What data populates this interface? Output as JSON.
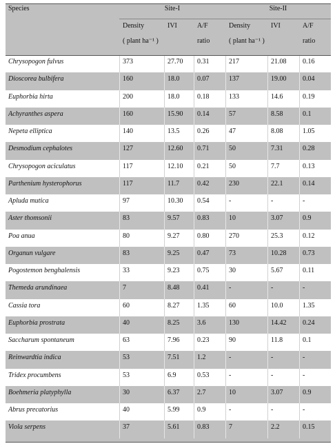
{
  "table": {
    "header": {
      "species": "Species",
      "site_1": "Site-I",
      "site_2": "Site-II",
      "columns": [
        [
          "Density",
          "( plant ha⁻¹ )"
        ],
        [
          "IVI"
        ],
        [
          "A/F",
          "ratio"
        ],
        [
          "Density",
          "( plant ha⁻¹ )"
        ],
        [
          "IVI"
        ],
        [
          "A/F",
          "ratio"
        ]
      ]
    },
    "rows": [
      [
        "Chrysopogon fulvus",
        "373",
        "27.70",
        "0.31",
        "217",
        "21.08",
        "0.16"
      ],
      [
        "Dioscorea bulbifera",
        "160",
        "18.0",
        "0.07",
        "137",
        "19.00",
        "0.04"
      ],
      [
        "Euphorbia hirta",
        "200",
        "18.0",
        "0.18",
        "133",
        "14.6",
        "0.19"
      ],
      [
        "Achyranthes aspera",
        "160",
        "15.90",
        "0.14",
        "57",
        "8.58",
        "0.1"
      ],
      [
        "Nepeta elliptica",
        "140",
        "13.5",
        "0.26",
        "47",
        "8.08",
        "1.05"
      ],
      [
        "Desmodium cephalotes",
        "127",
        "12.60",
        "0.71",
        "50",
        "7.31",
        "0.28"
      ],
      [
        "Chrysopogon aciculatus",
        "117",
        "12.10",
        "0.21",
        "50",
        "7.7",
        "0.13"
      ],
      [
        "Parthenium hysterophorus",
        "117",
        "11.7",
        "0.42",
        "230",
        "22.1",
        "0.14"
      ],
      [
        "Apluda mutica",
        "97",
        "10.30",
        "0.54",
        "-",
        "-",
        "-"
      ],
      [
        "Aster thomsonii",
        "83",
        "9.57",
        "0.83",
        "10",
        "3.07",
        "0.9"
      ],
      [
        "Poa anua",
        "80",
        "9.27",
        "0.80",
        "270",
        "25.3",
        "0.12"
      ],
      [
        "Organun vulgare",
        "83",
        "9.25",
        "0.47",
        "73",
        "10.28",
        "0.73"
      ],
      [
        "Pogostemon benghalensis",
        "33",
        "9.23",
        "0.75",
        "30",
        "5.67",
        "0.11"
      ],
      [
        "Themeda arundinaea",
        "7",
        "8.48",
        "0.41",
        "-",
        "-",
        "-"
      ],
      [
        "Cassia tora",
        "60",
        "8.27",
        "1.35",
        "60",
        "10.0",
        "1.35"
      ],
      [
        "Euphorbia prostrata",
        "40",
        "8.25",
        "3.6",
        "130",
        "14.42",
        "0.24"
      ],
      [
        "Saccharum spontaneum",
        "63",
        "7.96",
        "0.23",
        "90",
        "11.8",
        "0.1"
      ],
      [
        "Reinwardtia indica",
        "53",
        "7.51",
        "1.2",
        "-",
        "-",
        "-"
      ],
      [
        "Tridex procumbens",
        "53",
        "6.9",
        "0.53",
        "-",
        "-",
        "-"
      ],
      [
        "Boehmeria platyphylla",
        "30",
        "6.37",
        "2.7",
        "10",
        "3.07",
        "0.9"
      ],
      [
        "Abrus precatorius",
        "40",
        "5.99",
        "0.9",
        "-",
        "-",
        "-"
      ],
      [
        "Viola serpens",
        "37",
        "5.61",
        "0.83",
        "7",
        "2.2",
        "0.15"
      ]
    ]
  }
}
